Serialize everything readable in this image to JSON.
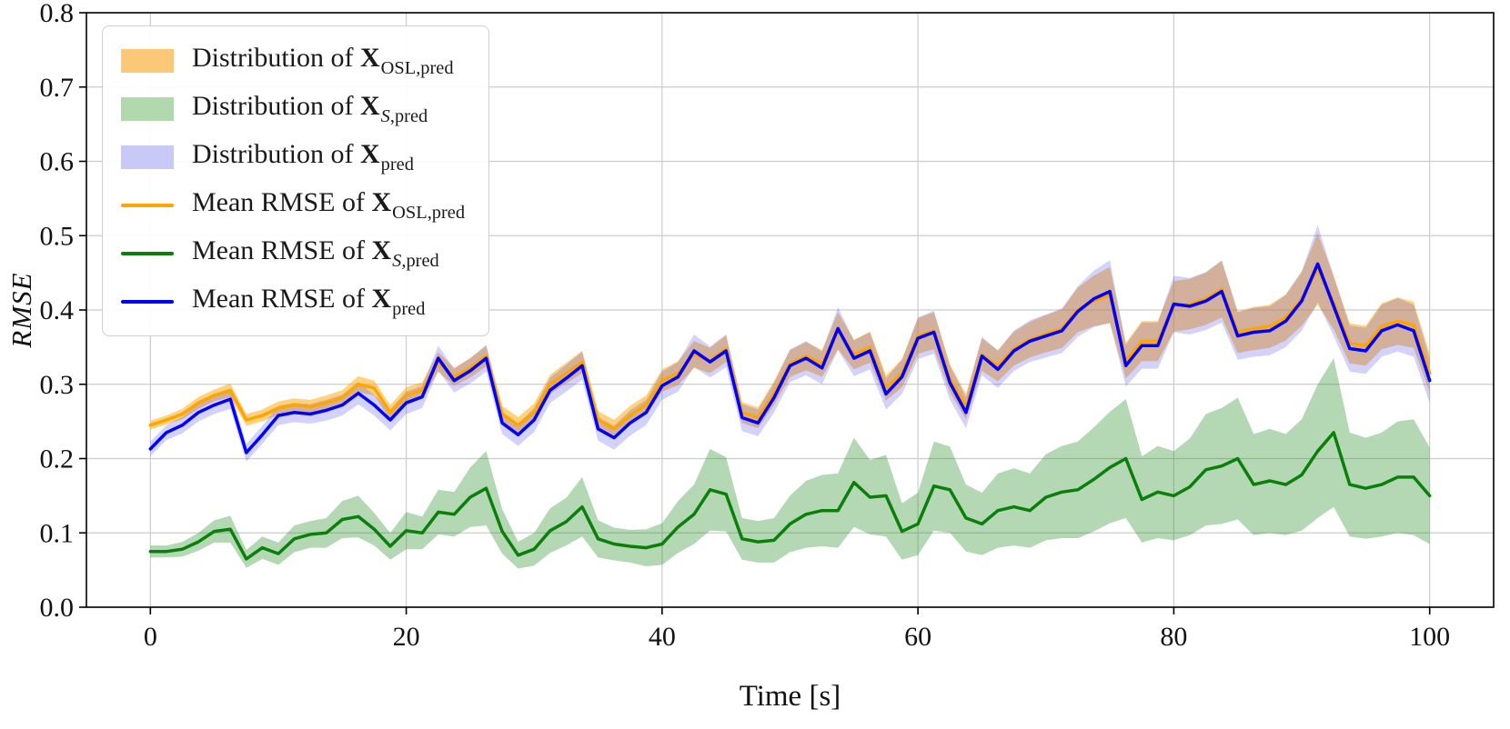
{
  "chart_data": {
    "type": "line",
    "title": "",
    "xlabel": "Time [s]",
    "ylabel": "RMSE",
    "xlim": [
      -5,
      105
    ],
    "ylim": [
      0.0,
      0.8
    ],
    "xticks": [
      0,
      20,
      40,
      60,
      80,
      100
    ],
    "xtick_labels": [
      "0",
      "20",
      "40",
      "60",
      "80",
      "100"
    ],
    "yticks": [
      0.0,
      0.1,
      0.2,
      0.3,
      0.4,
      0.5,
      0.6,
      0.7,
      0.8
    ],
    "ytick_labels": [
      "0.0",
      "0.1",
      "0.2",
      "0.3",
      "0.4",
      "0.5",
      "0.6",
      "0.7",
      "0.8"
    ],
    "grid": true,
    "legend_position": "upper left",
    "x": [
      0,
      1.25,
      2.5,
      3.75,
      5,
      6.25,
      7.5,
      8.75,
      10,
      11.25,
      12.5,
      13.75,
      15,
      16.25,
      17.5,
      18.75,
      20,
      21.25,
      22.5,
      23.75,
      25,
      26.25,
      27.5,
      28.75,
      30,
      31.25,
      32.5,
      33.75,
      35,
      36.25,
      37.5,
      38.75,
      40,
      41.25,
      42.5,
      43.75,
      45,
      46.25,
      47.5,
      48.75,
      50,
      51.25,
      52.5,
      53.75,
      55,
      56.25,
      57.5,
      58.75,
      60,
      61.25,
      62.5,
      63.75,
      65,
      66.25,
      67.5,
      68.75,
      70,
      71.25,
      72.5,
      73.75,
      75,
      76.25,
      77.5,
      78.75,
      80,
      81.25,
      82.5,
      83.75,
      85,
      86.25,
      87.5,
      88.75,
      90,
      91.25,
      92.5,
      93.75,
      95,
      96.25,
      97.5,
      98.75,
      100
    ],
    "series": [
      {
        "name": "Mean RMSE of X_OSL,pred",
        "color": "#ffa500",
        "fill": "rgba(255,165,0,0.50)",
        "values": [
          0.245,
          0.252,
          0.26,
          0.275,
          0.285,
          0.292,
          0.252,
          0.258,
          0.268,
          0.272,
          0.27,
          0.275,
          0.282,
          0.3,
          0.295,
          0.262,
          0.285,
          0.292,
          0.33,
          0.31,
          0.322,
          0.338,
          0.26,
          0.245,
          0.262,
          0.3,
          0.315,
          0.33,
          0.252,
          0.24,
          0.258,
          0.272,
          0.305,
          0.315,
          0.34,
          0.332,
          0.348,
          0.262,
          0.255,
          0.288,
          0.328,
          0.338,
          0.328,
          0.372,
          0.34,
          0.35,
          0.295,
          0.315,
          0.365,
          0.372,
          0.308,
          0.27,
          0.34,
          0.325,
          0.348,
          0.36,
          0.368,
          0.375,
          0.4,
          0.412,
          0.42,
          0.332,
          0.358,
          0.358,
          0.405,
          0.408,
          0.415,
          0.428,
          0.37,
          0.375,
          0.378,
          0.39,
          0.415,
          0.455,
          0.41,
          0.355,
          0.352,
          0.378,
          0.385,
          0.38,
          0.315
        ],
        "band_half": [
          0.006,
          0.006,
          0.007,
          0.008,
          0.008,
          0.009,
          0.008,
          0.008,
          0.009,
          0.009,
          0.009,
          0.01,
          0.01,
          0.011,
          0.01,
          0.01,
          0.011,
          0.011,
          0.013,
          0.012,
          0.013,
          0.014,
          0.011,
          0.011,
          0.012,
          0.013,
          0.014,
          0.015,
          0.012,
          0.012,
          0.013,
          0.013,
          0.015,
          0.016,
          0.018,
          0.017,
          0.018,
          0.014,
          0.014,
          0.016,
          0.018,
          0.019,
          0.018,
          0.025,
          0.02,
          0.021,
          0.017,
          0.019,
          0.024,
          0.025,
          0.019,
          0.017,
          0.022,
          0.021,
          0.023,
          0.024,
          0.025,
          0.026,
          0.03,
          0.034,
          0.038,
          0.024,
          0.027,
          0.027,
          0.034,
          0.034,
          0.035,
          0.038,
          0.028,
          0.029,
          0.029,
          0.031,
          0.036,
          0.048,
          0.036,
          0.027,
          0.027,
          0.031,
          0.032,
          0.031,
          0.026
        ]
      },
      {
        "name": "Mean RMSE of X_S,pred",
        "color": "#0a800a",
        "fill": "rgba(40,140,40,0.35)",
        "values": [
          0.075,
          0.075,
          0.078,
          0.088,
          0.102,
          0.105,
          0.065,
          0.08,
          0.072,
          0.092,
          0.098,
          0.1,
          0.118,
          0.122,
          0.105,
          0.082,
          0.103,
          0.1,
          0.128,
          0.125,
          0.148,
          0.16,
          0.102,
          0.07,
          0.078,
          0.103,
          0.115,
          0.135,
          0.092,
          0.085,
          0.082,
          0.08,
          0.085,
          0.108,
          0.125,
          0.158,
          0.152,
          0.092,
          0.088,
          0.09,
          0.112,
          0.125,
          0.13,
          0.13,
          0.168,
          0.148,
          0.15,
          0.102,
          0.112,
          0.163,
          0.158,
          0.12,
          0.112,
          0.13,
          0.135,
          0.13,
          0.148,
          0.155,
          0.158,
          0.172,
          0.188,
          0.2,
          0.145,
          0.155,
          0.15,
          0.162,
          0.185,
          0.19,
          0.2,
          0.165,
          0.17,
          0.165,
          0.178,
          0.21,
          0.235,
          0.165,
          0.16,
          0.165,
          0.175,
          0.175,
          0.15
        ],
        "band_half": [
          0.008,
          0.008,
          0.01,
          0.012,
          0.015,
          0.018,
          0.012,
          0.015,
          0.015,
          0.018,
          0.018,
          0.02,
          0.025,
          0.028,
          0.022,
          0.018,
          0.025,
          0.022,
          0.03,
          0.03,
          0.04,
          0.05,
          0.03,
          0.018,
          0.022,
          0.03,
          0.032,
          0.04,
          0.025,
          0.022,
          0.022,
          0.025,
          0.028,
          0.035,
          0.04,
          0.055,
          0.05,
          0.028,
          0.028,
          0.03,
          0.038,
          0.045,
          0.048,
          0.05,
          0.06,
          0.05,
          0.055,
          0.038,
          0.042,
          0.06,
          0.058,
          0.045,
          0.042,
          0.05,
          0.052,
          0.05,
          0.058,
          0.062,
          0.065,
          0.07,
          0.075,
          0.08,
          0.058,
          0.062,
          0.06,
          0.065,
          0.075,
          0.078,
          0.082,
          0.068,
          0.07,
          0.068,
          0.075,
          0.09,
          0.1,
          0.07,
          0.068,
          0.07,
          0.075,
          0.078,
          0.065
        ]
      },
      {
        "name": "Mean RMSE of X_pred",
        "color": "#0000ff",
        "fill": "rgba(80,80,240,0.26)",
        "values": [
          0.213,
          0.235,
          0.245,
          0.262,
          0.272,
          0.28,
          0.208,
          0.232,
          0.258,
          0.262,
          0.26,
          0.265,
          0.272,
          0.288,
          0.272,
          0.252,
          0.275,
          0.283,
          0.335,
          0.305,
          0.318,
          0.335,
          0.248,
          0.232,
          0.252,
          0.292,
          0.308,
          0.325,
          0.24,
          0.228,
          0.248,
          0.262,
          0.298,
          0.31,
          0.345,
          0.33,
          0.345,
          0.255,
          0.248,
          0.282,
          0.325,
          0.335,
          0.322,
          0.375,
          0.335,
          0.345,
          0.287,
          0.31,
          0.362,
          0.37,
          0.302,
          0.262,
          0.338,
          0.32,
          0.345,
          0.358,
          0.365,
          0.372,
          0.398,
          0.415,
          0.425,
          0.325,
          0.352,
          0.352,
          0.408,
          0.405,
          0.412,
          0.425,
          0.365,
          0.37,
          0.372,
          0.385,
          0.412,
          0.462,
          0.405,
          0.348,
          0.345,
          0.372,
          0.38,
          0.372,
          0.305
        ],
        "band_half": [
          0.01,
          0.01,
          0.011,
          0.012,
          0.012,
          0.013,
          0.012,
          0.012,
          0.013,
          0.013,
          0.013,
          0.014,
          0.014,
          0.015,
          0.014,
          0.014,
          0.015,
          0.015,
          0.017,
          0.016,
          0.017,
          0.018,
          0.015,
          0.015,
          0.016,
          0.017,
          0.018,
          0.019,
          0.016,
          0.016,
          0.017,
          0.017,
          0.019,
          0.02,
          0.022,
          0.021,
          0.022,
          0.018,
          0.018,
          0.02,
          0.022,
          0.023,
          0.022,
          0.029,
          0.024,
          0.025,
          0.021,
          0.023,
          0.028,
          0.029,
          0.023,
          0.021,
          0.026,
          0.025,
          0.027,
          0.028,
          0.029,
          0.03,
          0.034,
          0.038,
          0.042,
          0.028,
          0.031,
          0.031,
          0.038,
          0.038,
          0.039,
          0.042,
          0.032,
          0.033,
          0.033,
          0.035,
          0.04,
          0.052,
          0.04,
          0.031,
          0.031,
          0.035,
          0.036,
          0.035,
          0.03
        ]
      }
    ]
  },
  "legend": {
    "items": [
      {
        "prefix": "Distribution of ",
        "sym": "X",
        "sub_italic": "",
        "sub_rest": "OSL,pred",
        "swatch": "patch",
        "color": "#fbc878"
      },
      {
        "prefix": "Distribution of ",
        "sym": "X",
        "sub_italic": "S",
        "sub_rest": ",pred",
        "swatch": "patch",
        "color": "#b2d8ae"
      },
      {
        "prefix": "Distribution of ",
        "sym": "X",
        "sub_italic": "",
        "sub_rest": "pred",
        "swatch": "patch",
        "color": "#c9c9f8"
      },
      {
        "prefix": "Mean RMSE of ",
        "sym": "X",
        "sub_italic": "",
        "sub_rest": "OSL,pred",
        "swatch": "line",
        "color": "#ffa500"
      },
      {
        "prefix": "Mean RMSE of ",
        "sym": "X",
        "sub_italic": "S",
        "sub_rest": ",pred",
        "swatch": "line",
        "color": "#0a800a"
      },
      {
        "prefix": "Mean RMSE of ",
        "sym": "X",
        "sub_italic": "",
        "sub_rest": "pred",
        "swatch": "line",
        "color": "#0000ff"
      }
    ]
  }
}
